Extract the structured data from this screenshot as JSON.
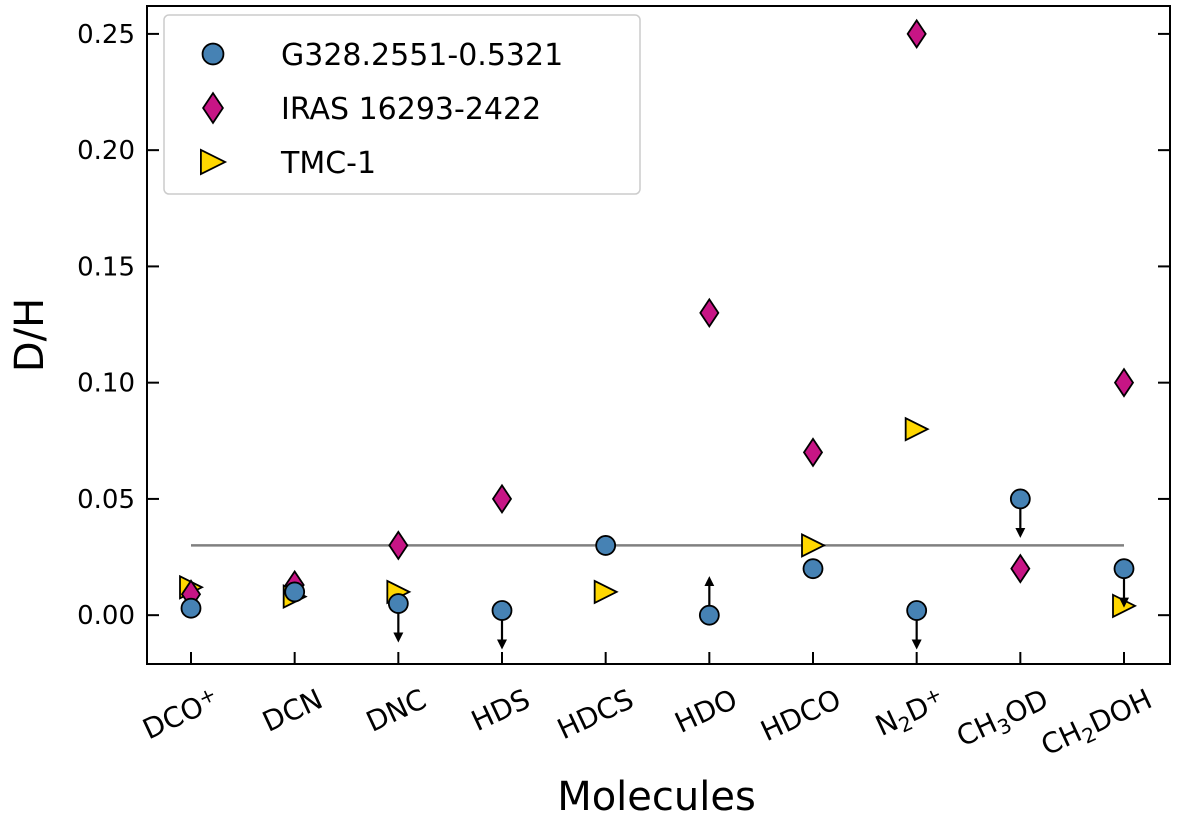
{
  "chart_data": {
    "type": "scatter",
    "title": "",
    "xlabel": "Molecules",
    "ylabel": "D/H",
    "ylim": [
      -0.021,
      0.262
    ],
    "yticks": [
      "0.00",
      "0.05",
      "0.10",
      "0.15",
      "0.20",
      "0.25"
    ],
    "categories": [
      "DCO+",
      "DCN",
      "DNC",
      "HDS",
      "HDCS",
      "HDO",
      "HDCO",
      "N2D+",
      "CH3OD",
      "CH2DOH"
    ],
    "category_labels": [
      {
        "base": "DCO",
        "sup": "+"
      },
      {
        "base": "DCN"
      },
      {
        "base": "DNC"
      },
      {
        "base": "HDS"
      },
      {
        "base": "HDCS"
      },
      {
        "base": "HDO"
      },
      {
        "base": "HDCO"
      },
      {
        "base": "N",
        "sub": "2",
        "base2": "D",
        "sup": "+"
      },
      {
        "base": "CH",
        "sub": "3",
        "base2": "OD"
      },
      {
        "base": "CH",
        "sub": "2",
        "base2": "DOH"
      }
    ],
    "reference_line": {
      "y": 0.03,
      "x_from": "DCO+",
      "x_to": "CH2DOH",
      "color": "#808080"
    },
    "legend_position": "top-left",
    "series": [
      {
        "name": "G328.2551-0.5321",
        "marker": "circle",
        "color": "#4682B4",
        "values": [
          0.003,
          0.01,
          0.005,
          0.002,
          0.03,
          0.0,
          0.02,
          0.002,
          0.05,
          0.02
        ],
        "limits": [
          "",
          "",
          "upper",
          "upper",
          "",
          "lower",
          "",
          "upper",
          "upper",
          "upper"
        ]
      },
      {
        "name": "IRAS 16293-2422",
        "marker": "diamond",
        "color": "#C71585",
        "values": [
          0.009,
          0.013,
          0.03,
          0.05,
          null,
          0.13,
          0.07,
          0.25,
          0.02,
          0.1
        ]
      },
      {
        "name": "TMC-1",
        "marker": "triangle-right",
        "color": "#FFD700",
        "values": [
          0.012,
          0.008,
          0.01,
          null,
          0.01,
          null,
          0.03,
          0.08,
          null,
          0.004
        ]
      }
    ]
  }
}
